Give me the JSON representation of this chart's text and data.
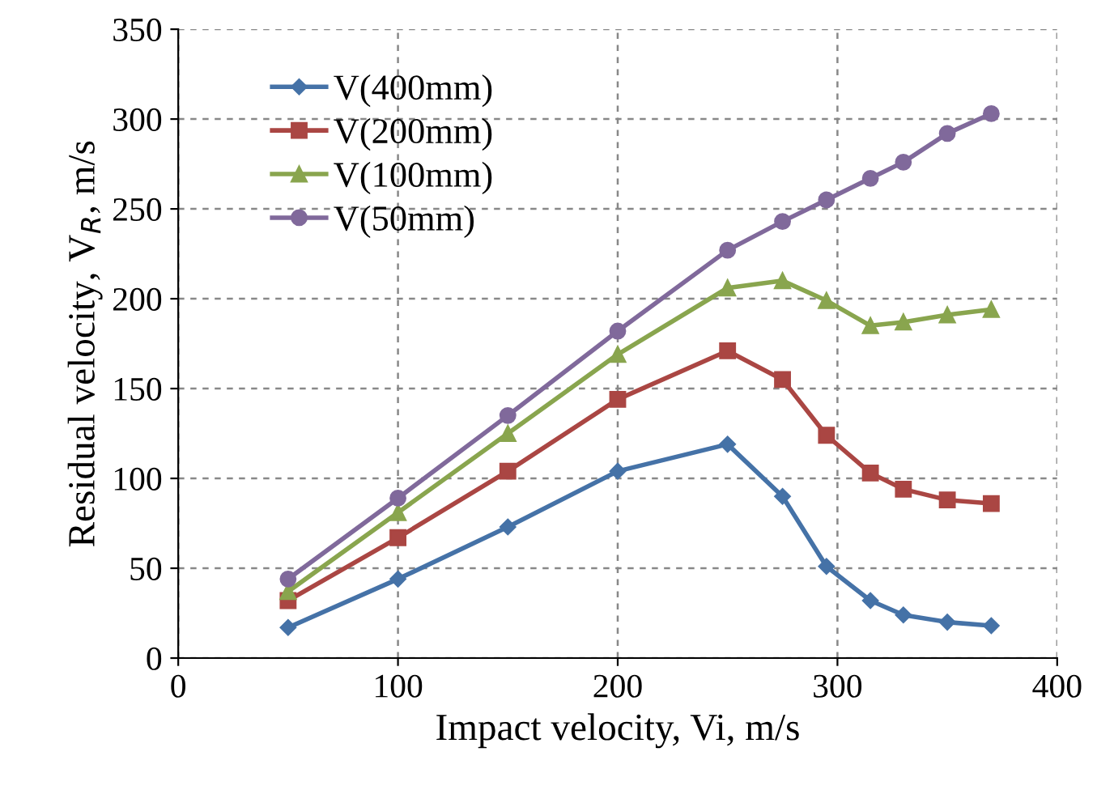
{
  "chart_data": {
    "type": "line",
    "xlabel": "Impact velocity, Vi, m/s",
    "ylabel": "Residual velocity, V$_{R}$, m/s",
    "x": [
      50,
      100,
      150,
      200,
      250,
      275,
      295,
      315,
      330,
      350,
      370
    ],
    "series": [
      {
        "name": "V(400mm)",
        "color": "#4572a7",
        "marker": "diamond",
        "values": [
          17,
          44,
          73,
          104,
          119,
          90,
          51,
          32,
          24,
          20,
          18
        ]
      },
      {
        "name": "V(200mm)",
        "color": "#aa4643",
        "marker": "square",
        "values": [
          32,
          67,
          104,
          144,
          171,
          155,
          124,
          103,
          94,
          88,
          86
        ]
      },
      {
        "name": "V(100mm)",
        "color": "#89a54e",
        "marker": "triangle",
        "values": [
          37,
          81,
          125,
          169,
          206,
          210,
          199,
          185,
          187,
          191,
          194
        ]
      },
      {
        "name": "V(50mm)",
        "color": "#80699b",
        "marker": "circle",
        "values": [
          44,
          89,
          135,
          182,
          227,
          243,
          255,
          267,
          276,
          292,
          303
        ]
      }
    ],
    "xlim": [
      0,
      400
    ],
    "xticks": [
      0,
      100,
      200,
      300,
      400
    ],
    "ylim": [
      0,
      350
    ],
    "yticks": [
      0,
      50,
      100,
      150,
      200,
      250,
      300,
      350
    ],
    "grid": true,
    "legend": "top left",
    "line_style": "solid"
  }
}
